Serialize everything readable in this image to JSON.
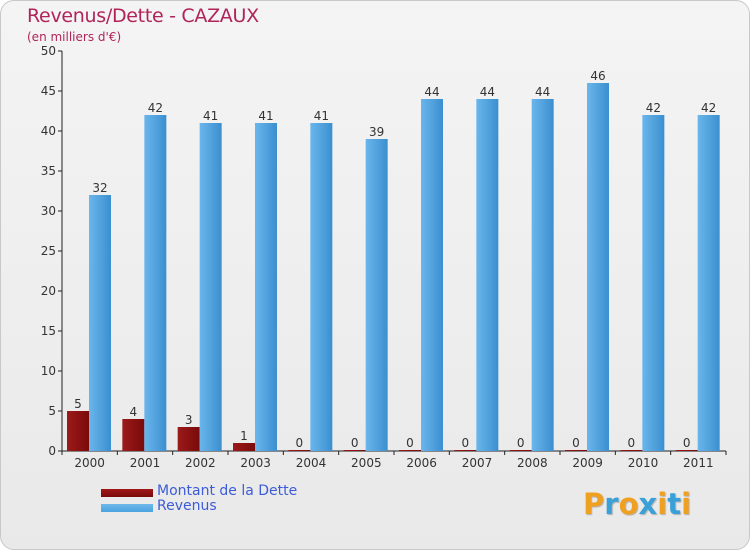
{
  "title": "Revenus/Dette - CAZAUX",
  "subtitle": "(en milliers d'€)",
  "logo": {
    "letters": [
      "P",
      "r",
      "o",
      "x",
      "i",
      "t",
      "i"
    ],
    "colors": [
      "#f0a020",
      "#3aa0d8",
      "#f0a020",
      "#3aa0d8",
      "#f0a020",
      "#3aa0d8",
      "#f0a020"
    ]
  },
  "legend": {
    "dette": "Montant de la Dette",
    "revenus": "Revenus"
  },
  "colors": {
    "dette": "#7a0a0a",
    "revenus": "#4aa3e0",
    "title": "#b0245a",
    "legend_text": "#3c5bd8"
  },
  "chart_data": {
    "type": "bar",
    "title": "Revenus/Dette - CAZAUX",
    "ylabel": "(en milliers d'€)",
    "xlabel": "",
    "categories": [
      "2000",
      "2001",
      "2002",
      "2003",
      "2004",
      "2005",
      "2006",
      "2007",
      "2008",
      "2009",
      "2010",
      "2011"
    ],
    "series": [
      {
        "name": "Montant de la Dette",
        "values": [
          5,
          4,
          3,
          1,
          0,
          0,
          0,
          0,
          0,
          0,
          0,
          0
        ]
      },
      {
        "name": "Revenus",
        "values": [
          32,
          42,
          41,
          41,
          41,
          39,
          44,
          44,
          44,
          46,
          42,
          42
        ]
      }
    ],
    "ylim": [
      0,
      50
    ],
    "yticks": [
      0,
      5,
      10,
      15,
      20,
      25,
      30,
      35,
      40,
      45,
      50
    ],
    "grid": false,
    "legend_position": "bottom-left"
  }
}
